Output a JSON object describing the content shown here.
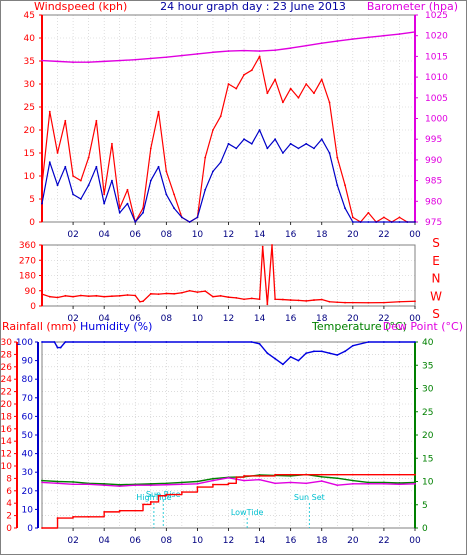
{
  "colors": {
    "wind_gust": "#ff0000",
    "wind_avg": "#0000c8",
    "barometer": "#e000e0",
    "direction": "#ff0000",
    "rainfall": "#ff0000",
    "humidity": "#0000e0",
    "temperature": "#008000",
    "dewpoint": "#e000e0",
    "annotation": "#00c0d0",
    "rain_axis": "#ff0000",
    "humidity_axis": "#0000c8",
    "temp_axis": "#008000",
    "grid": "#c8c8c8",
    "frame": "#808080"
  },
  "header": {
    "wind_label": "Windspeed (kph)",
    "title": "24 hour graph day : 23 June 2013",
    "baro_label": "Barometer (hpa)"
  },
  "bottom_header": {
    "rain_label": "Rainfall (mm)",
    "humidity_label": "Humidity (%)",
    "temp_label": "Temperature (°C)",
    "dew_label": "Dew Point (°C)"
  },
  "compass_letters": [
    "S",
    "E",
    "N",
    "W",
    "S"
  ],
  "chart_data": [
    {
      "type": "line",
      "name": "wind-baro",
      "x_ticks": [
        "02",
        "04",
        "06",
        "08",
        "10",
        "12",
        "14",
        "16",
        "18",
        "20",
        "22",
        "00"
      ],
      "x_range_hours": [
        0,
        24
      ],
      "ylim_left": [
        0,
        45
      ],
      "yticks_left": [
        0,
        5,
        10,
        15,
        20,
        25,
        30,
        35,
        40,
        45
      ],
      "ylim_right": [
        975,
        1025
      ],
      "yticks_right": [
        975,
        980,
        985,
        990,
        995,
        1000,
        1005,
        1010,
        1015,
        1020,
        1025
      ],
      "grid": true,
      "series": [
        {
          "name": "Windspeed (kph)",
          "axis": "left",
          "x": [
            0,
            0.5,
            1,
            1.5,
            2,
            2.5,
            3,
            3.5,
            4,
            4.5,
            5,
            5.5,
            6,
            6.5,
            7,
            7.5,
            8,
            8.5,
            9,
            9.5,
            10,
            10.5,
            11,
            11.5,
            12,
            12.5,
            13,
            13.5,
            14,
            14.5,
            15,
            15.5,
            16,
            16.5,
            17,
            17.5,
            18,
            18.5,
            19,
            19.5,
            20,
            20.5,
            21,
            21.5,
            22,
            22.5,
            23,
            23.5,
            24
          ],
          "values": [
            8,
            24,
            15,
            22,
            10,
            9,
            14,
            22,
            6,
            17,
            3,
            7,
            0,
            3,
            16,
            24,
            11,
            6,
            1,
            0,
            1,
            14,
            20,
            23,
            30,
            29,
            32,
            33,
            36,
            28,
            31,
            26,
            29,
            27,
            30,
            28,
            31,
            26,
            14,
            8,
            1,
            0,
            2,
            0,
            1,
            0,
            1,
            0,
            0
          ]
        },
        {
          "name": "Average speed",
          "axis": "left",
          "x": [
            0,
            0.5,
            1,
            1.5,
            2,
            2.5,
            3,
            3.5,
            4,
            4.5,
            5,
            5.5,
            6,
            6.5,
            7,
            7.5,
            8,
            8.5,
            9,
            9.5,
            10,
            10.5,
            11,
            11.5,
            12,
            12.5,
            13,
            13.5,
            14,
            14.5,
            15,
            15.5,
            16,
            16.5,
            17,
            17.5,
            18,
            18.5,
            19,
            19.5,
            20,
            20.5,
            21,
            21.5,
            22,
            22.5,
            23,
            23.5,
            24
          ],
          "values": [
            4,
            13,
            8,
            12,
            6,
            5,
            8,
            12,
            4,
            9,
            2,
            4,
            0,
            2,
            9,
            12,
            6,
            3,
            1,
            0,
            1,
            7,
            11,
            13,
            17,
            16,
            18,
            17,
            20,
            16,
            18,
            15,
            17,
            16,
            17,
            16,
            18,
            15,
            8,
            3,
            0,
            0,
            0,
            0,
            0,
            0,
            0,
            0,
            0
          ]
        },
        {
          "name": "Barometer (hpa)",
          "axis": "right",
          "x": [
            0,
            1,
            2,
            3,
            4,
            5,
            6,
            7,
            8,
            9,
            10,
            11,
            12,
            13,
            14,
            15,
            16,
            17,
            18,
            19,
            20,
            21,
            22,
            23,
            24
          ],
          "values": [
            1014,
            1013.8,
            1013.6,
            1013.6,
            1013.8,
            1014,
            1014.2,
            1014.5,
            1014.8,
            1015.2,
            1015.6,
            1016,
            1016.3,
            1016.4,
            1016.3,
            1016.5,
            1017,
            1017.6,
            1018.2,
            1018.7,
            1019.2,
            1019.6,
            1020,
            1020.4,
            1020.9
          ]
        }
      ]
    },
    {
      "type": "line",
      "name": "wind-direction",
      "x_ticks": [
        "02",
        "04",
        "06",
        "08",
        "10",
        "12",
        "14",
        "16",
        "18",
        "20",
        "22",
        "00"
      ],
      "x_range_hours": [
        0,
        24
      ],
      "ylim": [
        0,
        360
      ],
      "yticks": [
        0,
        90,
        180,
        270,
        360
      ],
      "grid": true,
      "series": [
        {
          "name": "Wind direction",
          "x": [
            0,
            0.5,
            1,
            1.5,
            2,
            2.5,
            3,
            3.5,
            4,
            4.5,
            5,
            5.5,
            6,
            6.3,
            6.5,
            7,
            7.5,
            8,
            8.5,
            9,
            9.5,
            10,
            10.5,
            11,
            11.5,
            12,
            12.5,
            13,
            13.5,
            14,
            14.2,
            14.5,
            14.8,
            15,
            15.5,
            16,
            16.5,
            17,
            17.5,
            18,
            18.5,
            19,
            19.5,
            20,
            21,
            22,
            23,
            24
          ],
          "values": [
            70,
            55,
            50,
            60,
            55,
            62,
            58,
            60,
            55,
            58,
            60,
            65,
            62,
            25,
            28,
            72,
            70,
            74,
            72,
            78,
            90,
            82,
            88,
            55,
            60,
            52,
            48,
            40,
            45,
            40,
            350,
            10,
            360,
            40,
            38,
            35,
            33,
            30,
            35,
            38,
            25,
            22,
            20,
            20,
            19,
            20,
            25,
            28
          ]
        }
      ]
    },
    {
      "type": "line",
      "name": "rain-humidity-temp",
      "x_ticks": [
        "02",
        "04",
        "06",
        "08",
        "10",
        "12",
        "14",
        "16",
        "18",
        "20",
        "22",
        "00"
      ],
      "x_range_hours": [
        0,
        24
      ],
      "ylim_rain": [
        0,
        30
      ],
      "yticks_rain": [
        0,
        2,
        4,
        6,
        8,
        10,
        12,
        14,
        16,
        18,
        20,
        22,
        24,
        26,
        28,
        30
      ],
      "ylim_humidity": [
        0,
        100
      ],
      "yticks_humidity": [
        0,
        10,
        20,
        30,
        40,
        50,
        60,
        70,
        80,
        90,
        100
      ],
      "ylim_temp": [
        0,
        40
      ],
      "yticks_temp": [
        0,
        5,
        10,
        15,
        20,
        25,
        30,
        35,
        40
      ],
      "grid": true,
      "series": [
        {
          "name": "Rainfall (mm)",
          "axis": "rain",
          "x": [
            0,
            1,
            2,
            3,
            4,
            5,
            6,
            6.5,
            7,
            7.5,
            8,
            9,
            10,
            11,
            12,
            12.5,
            13,
            14,
            15,
            16,
            17,
            18,
            19,
            20,
            21,
            22,
            23,
            24
          ],
          "values": [
            0,
            1.6,
            1.8,
            1.8,
            2.6,
            2.8,
            2.8,
            3.8,
            4.2,
            5.2,
            5.4,
            5.8,
            6.6,
            7,
            7.2,
            8.2,
            8.4,
            8.4,
            8.6,
            8.6,
            8.6,
            8.6,
            8.6,
            8.6,
            8.6,
            8.6,
            8.6,
            8.6
          ]
        },
        {
          "name": "Humidity (%)",
          "axis": "humidity",
          "x": [
            0,
            0.8,
            1,
            1.2,
            1.5,
            2,
            4,
            6,
            8,
            10,
            12,
            13.5,
            14,
            14.5,
            15,
            15.5,
            16,
            16.5,
            17,
            17.5,
            18,
            18.5,
            19,
            19.5,
            20,
            21,
            22,
            23,
            24
          ],
          "values": [
            100,
            100,
            97,
            97,
            100,
            100,
            100,
            100,
            100,
            100,
            100,
            100,
            99,
            94,
            91,
            88,
            92,
            90,
            94,
            95,
            95,
            94,
            93,
            95,
            98,
            100,
            100,
            100,
            100
          ]
        },
        {
          "name": "Temperature (°C)",
          "axis": "temp",
          "x": [
            0,
            1,
            2,
            3,
            4,
            5,
            6,
            7,
            8,
            9,
            10,
            11,
            12,
            13,
            14,
            15,
            16,
            17,
            18,
            19,
            20,
            21,
            22,
            23,
            24
          ],
          "values": [
            10.2,
            10,
            9.9,
            9.6,
            9.5,
            9.3,
            9.4,
            9.5,
            9.6,
            9.8,
            10,
            10.6,
            10.9,
            11,
            11.4,
            11.3,
            11.2,
            11.5,
            11,
            10.7,
            10.2,
            9.8,
            9.8,
            9.7,
            9.8
          ]
        },
        {
          "name": "Dew Point (°C)",
          "axis": "temp",
          "x": [
            0,
            1,
            2,
            3,
            4,
            5,
            6,
            7,
            8,
            9,
            10,
            11,
            12,
            13,
            14,
            15,
            16,
            17,
            18,
            19,
            20,
            21,
            22,
            23,
            24
          ],
          "values": [
            9.8,
            9.6,
            9.4,
            9.4,
            9.2,
            9,
            9.2,
            9.2,
            9.3,
            9.4,
            9.5,
            10.2,
            10.8,
            10.2,
            10.4,
            9.6,
            9.8,
            9.6,
            10.1,
            9.2,
            9.5,
            9.5,
            9.5,
            9.4,
            9.5
          ]
        }
      ],
      "annotations": [
        {
          "label": "HighTide",
          "x": 7.2
        },
        {
          "label": "Sun Rise",
          "x": 7.8
        },
        {
          "label": "LowTide",
          "x": 13.2
        },
        {
          "label": "Sun Set",
          "x": 17.2
        }
      ]
    }
  ]
}
